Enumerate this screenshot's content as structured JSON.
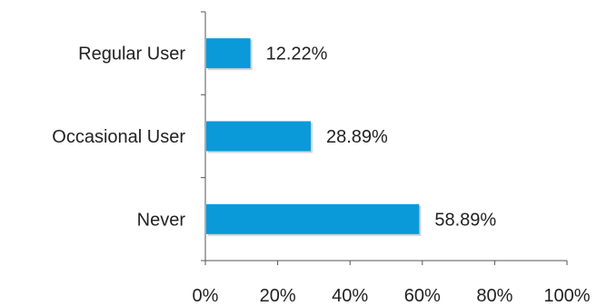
{
  "chart_data": {
    "type": "bar",
    "orientation": "horizontal",
    "categories": [
      "Regular User",
      "Occasional User",
      "Never"
    ],
    "values": [
      12.22,
      28.89,
      58.89
    ],
    "value_labels": [
      "12.22%",
      "28.89%",
      "58.89%"
    ],
    "x_ticks": [
      "0%",
      "20%",
      "40%",
      "60%",
      "80%",
      "100%"
    ],
    "xlim": [
      0,
      100
    ],
    "title": "",
    "xlabel": "",
    "ylabel": "",
    "grid": false,
    "legend": "none",
    "bar_color": "#0A9AD9"
  }
}
